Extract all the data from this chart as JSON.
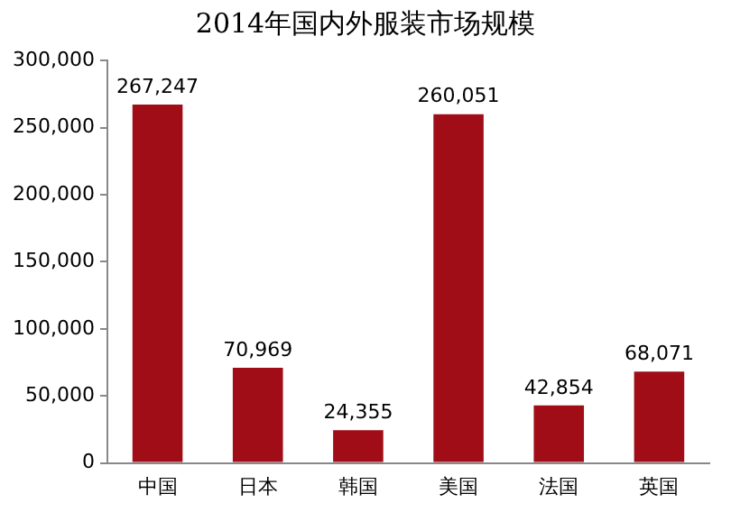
{
  "chart_data": {
    "type": "bar",
    "title": "2014年国内外服装市场规模",
    "categories": [
      "中国",
      "日本",
      "韩国",
      "美国",
      "法国",
      "英国"
    ],
    "values": [
      267247,
      70969,
      24355,
      260051,
      42854,
      68071
    ],
    "color": "#a00d16",
    "ylim": [
      0,
      300000
    ],
    "yticks": [
      {
        "value": 0,
        "label": "0"
      },
      {
        "value": 50000,
        "label": "50,000"
      },
      {
        "value": 100000,
        "label": "100,000"
      },
      {
        "value": 150000,
        "label": "150,000"
      },
      {
        "value": 200000,
        "label": "200,000"
      },
      {
        "value": 250000,
        "label": "250,000"
      },
      {
        "value": 300000,
        "label": "300,000"
      }
    ],
    "value_labels": [
      "267,247",
      "70,969",
      "24,355",
      "260,051",
      "42,854",
      "68,071"
    ],
    "grid": false,
    "legend": false
  }
}
